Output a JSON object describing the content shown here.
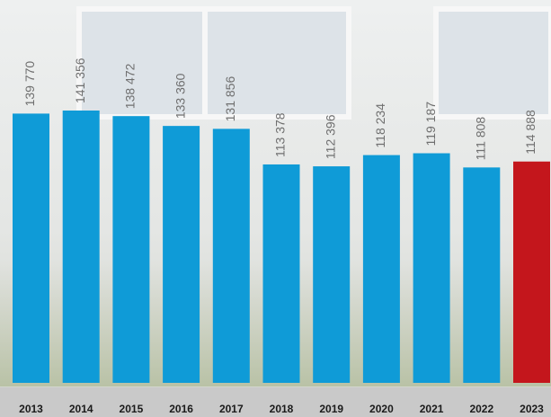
{
  "chart_data": {
    "type": "bar",
    "categories": [
      "2013",
      "2014",
      "2015",
      "2016",
      "2017",
      "2018",
      "2019",
      "2020",
      "2021",
      "2022",
      "2023"
    ],
    "values": [
      139770,
      141356,
      138472,
      133360,
      131856,
      113378,
      112396,
      118234,
      119187,
      111808,
      114888
    ],
    "value_labels": [
      "139 770",
      "141 356",
      "138 472",
      "133 360",
      "131 856",
      "113 378",
      "112 396",
      "118 234",
      "119 187",
      "111 808",
      "114 888"
    ],
    "colors": [
      "#0f9bd7",
      "#0f9bd7",
      "#0f9bd7",
      "#0f9bd7",
      "#0f9bd7",
      "#0f9bd7",
      "#0f9bd7",
      "#0f9bd7",
      "#0f9bd7",
      "#0f9bd7",
      "#c4161c"
    ]
  }
}
